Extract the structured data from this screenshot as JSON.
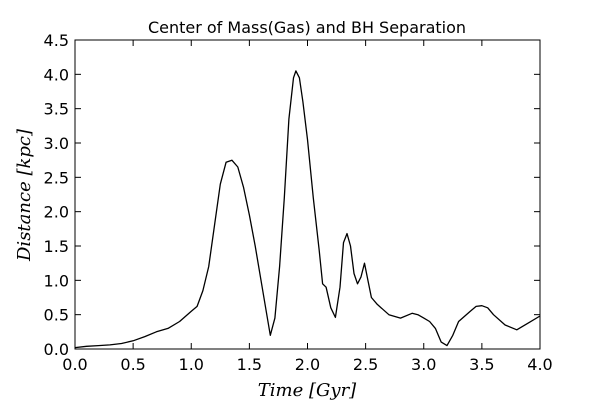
{
  "chart_data": {
    "type": "line",
    "title": "Center of Mass(Gas) and BH Separation",
    "xlabel": "Time [Gyr]",
    "ylabel": "Distance [kpc]",
    "xlim": [
      0.0,
      4.0
    ],
    "ylim": [
      0.0,
      4.5
    ],
    "xticks": [
      "0.0",
      "0.5",
      "1.0",
      "1.5",
      "2.0",
      "2.5",
      "3.0",
      "3.5",
      "4.0"
    ],
    "yticks": [
      "0.0",
      "0.5",
      "1.0",
      "1.5",
      "2.0",
      "2.5",
      "3.0",
      "3.5",
      "4.0",
      "4.5"
    ],
    "grid": false,
    "line_color": "#000000",
    "series": [
      {
        "x": [
          0.0,
          0.1,
          0.2,
          0.3,
          0.4,
          0.5,
          0.6,
          0.7,
          0.8,
          0.9,
          1.0,
          1.05,
          1.1,
          1.15,
          1.2,
          1.25,
          1.3,
          1.35,
          1.4,
          1.45,
          1.5,
          1.55,
          1.6,
          1.65,
          1.68,
          1.72,
          1.76,
          1.8,
          1.84,
          1.88,
          1.9,
          1.93,
          1.96,
          2.0,
          2.05,
          2.1,
          2.13,
          2.16,
          2.2,
          2.24,
          2.28,
          2.31,
          2.34,
          2.37,
          2.4,
          2.43,
          2.46,
          2.49,
          2.52,
          2.55,
          2.6,
          2.7,
          2.8,
          2.9,
          2.95,
          3.0,
          3.05,
          3.1,
          3.15,
          3.2,
          3.25,
          3.3,
          3.4,
          3.45,
          3.5,
          3.55,
          3.6,
          3.7,
          3.8,
          3.9,
          4.0
        ],
        "y": [
          0.02,
          0.04,
          0.05,
          0.06,
          0.08,
          0.12,
          0.18,
          0.25,
          0.3,
          0.4,
          0.55,
          0.62,
          0.85,
          1.2,
          1.8,
          2.4,
          2.72,
          2.75,
          2.65,
          2.35,
          1.95,
          1.5,
          1.0,
          0.5,
          0.2,
          0.45,
          1.2,
          2.2,
          3.35,
          3.95,
          4.05,
          3.95,
          3.6,
          3.05,
          2.2,
          1.45,
          0.95,
          0.9,
          0.6,
          0.46,
          0.9,
          1.55,
          1.68,
          1.5,
          1.1,
          0.95,
          1.05,
          1.25,
          1.0,
          0.75,
          0.65,
          0.5,
          0.45,
          0.52,
          0.5,
          0.45,
          0.4,
          0.3,
          0.1,
          0.05,
          0.2,
          0.4,
          0.55,
          0.62,
          0.63,
          0.6,
          0.5,
          0.35,
          0.28,
          0.38,
          0.48
        ]
      }
    ]
  }
}
